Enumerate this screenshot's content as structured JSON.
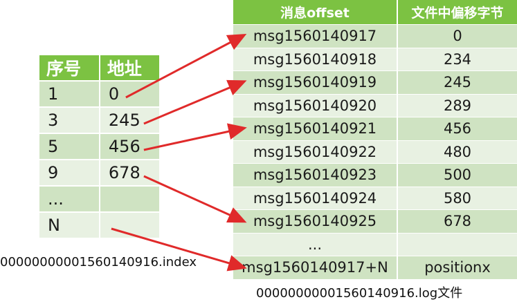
{
  "index_table": {
    "headers": [
      "序号",
      "地址"
    ],
    "rows": [
      [
        "1",
        "0"
      ],
      [
        "3",
        "245"
      ],
      [
        "5",
        "456"
      ],
      [
        "9",
        "678"
      ],
      [
        "...",
        ""
      ],
      [
        "N",
        ""
      ]
    ]
  },
  "log_table": {
    "headers": [
      "消息offset",
      "文件中偏移字节"
    ],
    "rows": [
      [
        "msg1560140917",
        "0"
      ],
      [
        "msg1560140918",
        "234"
      ],
      [
        "msg1560140919",
        "245"
      ],
      [
        "msg1560140920",
        "289"
      ],
      [
        "msg1560140921",
        "456"
      ],
      [
        "msg1560140922",
        "480"
      ],
      [
        "msg1560140923",
        "500"
      ],
      [
        "msg1560140924",
        "580"
      ],
      [
        "msg1560140925",
        "678"
      ],
      [
        "...",
        ""
      ],
      [
        "msg1560140917+N",
        "positionx"
      ]
    ]
  },
  "captions": {
    "index_file": "00000000001560140916.index",
    "log_file": "00000000001560140916.log文件"
  },
  "arrows": [
    {
      "from_index_row": 0,
      "to_log_row": 0
    },
    {
      "from_index_row": 1,
      "to_log_row": 2
    },
    {
      "from_index_row": 2,
      "to_log_row": 4
    },
    {
      "from_index_row": 3,
      "to_log_row": 8
    },
    {
      "from_index_row": 5,
      "to_log_row": 10
    }
  ],
  "colors": {
    "header_green": "#7cc242",
    "row_dark": "#cfe3c2",
    "row_light": "#e8f1e2",
    "arrow_red": "#e02a2a"
  }
}
